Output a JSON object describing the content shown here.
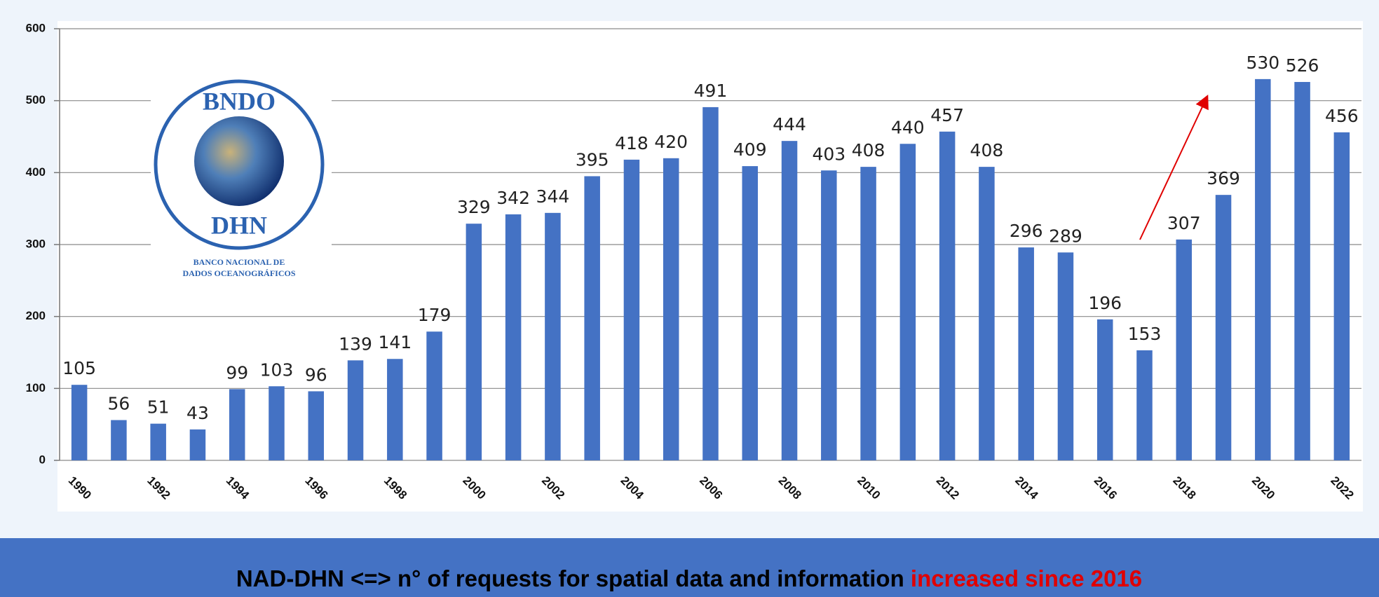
{
  "chart_data": {
    "type": "bar",
    "categories": [
      "1990",
      null,
      "1992",
      null,
      "1994",
      null,
      "1996",
      null,
      "1998",
      null,
      "2000",
      null,
      "2002",
      null,
      "2004",
      null,
      "2006",
      null,
      "2008",
      null,
      "2010",
      null,
      "2012",
      null,
      "2014",
      null,
      "2016",
      null,
      "2018",
      null,
      "2020",
      null,
      "2022"
    ],
    "values": [
      105,
      56,
      51,
      43,
      99,
      103,
      96,
      139,
      141,
      179,
      329,
      342,
      344,
      395,
      418,
      420,
      491,
      409,
      444,
      403,
      408,
      440,
      457,
      408,
      296,
      289,
      196,
      153,
      307,
      369,
      530,
      526,
      456
    ],
    "color": "#4472c4",
    "ylim": [
      0,
      600
    ],
    "yticks": [
      0,
      100,
      200,
      300,
      400,
      500,
      600
    ],
    "grid": true
  },
  "logo": {
    "top": "BNDO",
    "bottom": "DHN",
    "line1": "BANCO NACIONAL DE",
    "line2": "DADOS OCEANOGRÁFICOS"
  },
  "footer": {
    "text": "NAD-DHN <=> n° of requests for spatial data and information ",
    "highlight": "increased since 2016"
  }
}
